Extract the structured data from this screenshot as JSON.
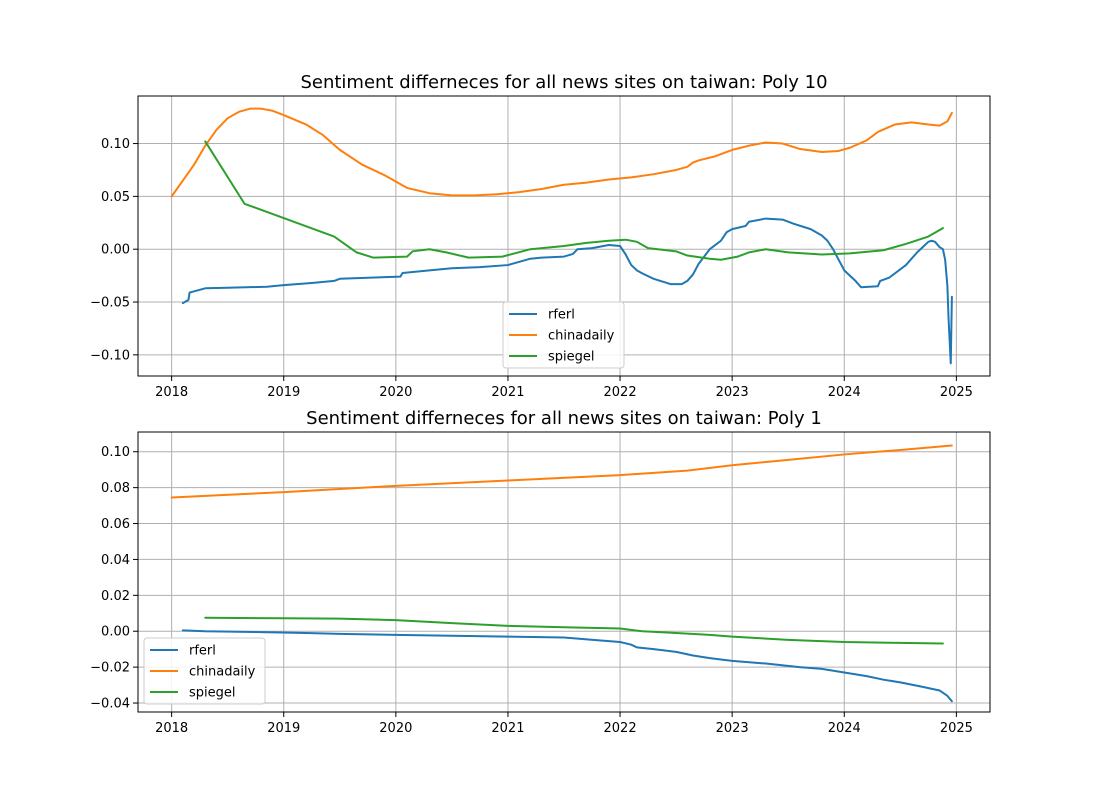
{
  "chart_data": [
    {
      "type": "line",
      "title": "Sentiment differneces for all news sites on taiwan: Poly 10",
      "xlabel": "",
      "ylabel": "",
      "xlim": [
        2017.7,
        2025.3
      ],
      "ylim": [
        -0.12,
        0.145
      ],
      "xticks": [
        2018,
        2019,
        2020,
        2021,
        2022,
        2023,
        2024,
        2025
      ],
      "xtick_labels": [
        "2018",
        "2019",
        "2020",
        "2021",
        "2022",
        "2023",
        "2024",
        "2025"
      ],
      "yticks": [
        -0.1,
        -0.05,
        0.0,
        0.05,
        0.1
      ],
      "ytick_labels": [
        "−0.10",
        "−0.05",
        "0.00",
        "0.05",
        "0.10"
      ],
      "grid": true,
      "legend_position": "lower-center",
      "series": [
        {
          "name": "rferl",
          "color": "#1f77b4",
          "x": [
            2018.1,
            2018.15,
            2018.16,
            2018.3,
            2018.5,
            2018.85,
            2019.0,
            2019.25,
            2019.45,
            2019.5,
            2019.75,
            2020.04,
            2020.06,
            2020.3,
            2020.5,
            2020.75,
            2021.0,
            2021.05,
            2021.2,
            2021.3,
            2021.5,
            2021.58,
            2021.62,
            2021.75,
            2021.9,
            2022.0,
            2022.05,
            2022.1,
            2022.15,
            2022.2,
            2022.3,
            2022.45,
            2022.55,
            2022.6,
            2022.65,
            2022.7,
            2022.8,
            2022.9,
            2022.95,
            2023.0,
            2023.12,
            2023.15,
            2023.3,
            2023.45,
            2023.55,
            2023.7,
            2023.8,
            2023.85,
            2023.9,
            2024.0,
            2024.1,
            2024.15,
            2024.3,
            2024.32,
            2024.4,
            2024.55,
            2024.6,
            2024.65,
            2024.7,
            2024.75,
            2024.78,
            2024.81,
            2024.85,
            2024.88,
            2024.9,
            2024.92,
            2024.93,
            2024.95,
            2024.96
          ],
          "values": [
            -0.051,
            -0.048,
            -0.041,
            -0.037,
            -0.0365,
            -0.0355,
            -0.034,
            -0.032,
            -0.03,
            -0.028,
            -0.027,
            -0.026,
            -0.0225,
            -0.02,
            -0.018,
            -0.017,
            -0.015,
            -0.0135,
            -0.009,
            -0.008,
            -0.007,
            -0.0045,
            0.0,
            0.001,
            0.004,
            0.003,
            -0.005,
            -0.015,
            -0.02,
            -0.023,
            -0.028,
            -0.033,
            -0.033,
            -0.03,
            -0.024,
            -0.014,
            0.0,
            0.008,
            0.016,
            0.019,
            0.022,
            0.026,
            0.029,
            0.028,
            0.024,
            0.019,
            0.013,
            0.008,
            0.0,
            -0.02,
            -0.03,
            -0.036,
            -0.035,
            -0.03,
            -0.027,
            -0.015,
            -0.009,
            -0.003,
            0.002,
            0.007,
            0.008,
            0.007,
            0.002,
            0.0,
            -0.01,
            -0.035,
            -0.065,
            -0.108,
            -0.045
          ]
        },
        {
          "name": "chinadaily",
          "color": "#ff7f0e",
          "x": [
            2018.0,
            2018.1,
            2018.2,
            2018.3,
            2018.4,
            2018.5,
            2018.6,
            2018.7,
            2018.8,
            2018.9,
            2019.0,
            2019.2,
            2019.35,
            2019.5,
            2019.7,
            2019.9,
            2020.1,
            2020.3,
            2020.5,
            2020.7,
            2020.9,
            2021.1,
            2021.3,
            2021.5,
            2021.7,
            2021.9,
            2022.1,
            2022.3,
            2022.5,
            2022.6,
            2022.65,
            2022.7,
            2022.85,
            2023.0,
            2023.15,
            2023.3,
            2023.45,
            2023.6,
            2023.8,
            2023.95,
            2024.05,
            2024.2,
            2024.3,
            2024.45,
            2024.6,
            2024.75,
            2024.85,
            2024.92,
            2024.96
          ],
          "values": [
            0.05,
            0.065,
            0.08,
            0.098,
            0.113,
            0.124,
            0.13,
            0.133,
            0.133,
            0.131,
            0.127,
            0.118,
            0.108,
            0.094,
            0.08,
            0.07,
            0.058,
            0.053,
            0.051,
            0.051,
            0.052,
            0.054,
            0.057,
            0.061,
            0.063,
            0.066,
            0.068,
            0.071,
            0.075,
            0.078,
            0.082,
            0.084,
            0.088,
            0.094,
            0.098,
            0.101,
            0.1,
            0.095,
            0.092,
            0.093,
            0.096,
            0.103,
            0.111,
            0.118,
            0.12,
            0.118,
            0.117,
            0.121,
            0.129
          ]
        },
        {
          "name": "spiegel",
          "color": "#2ca02c",
          "x": [
            2018.3,
            2018.65,
            2019.45,
            2019.65,
            2019.8,
            2020.1,
            2020.15,
            2020.3,
            2020.45,
            2020.65,
            2020.95,
            2021.2,
            2021.5,
            2021.7,
            2021.9,
            2022.05,
            2022.15,
            2022.25,
            2022.5,
            2022.6,
            2022.8,
            2022.9,
            2023.05,
            2023.15,
            2023.3,
            2023.5,
            2023.8,
            2024.05,
            2024.35,
            2024.55,
            2024.75,
            2024.88
          ],
          "values": [
            0.102,
            0.043,
            0.012,
            -0.003,
            -0.008,
            -0.007,
            -0.002,
            0.0,
            -0.003,
            -0.008,
            -0.007,
            0.0,
            0.003,
            0.006,
            0.008,
            0.009,
            0.007,
            0.001,
            -0.002,
            -0.006,
            -0.009,
            -0.01,
            -0.007,
            -0.003,
            0.0,
            -0.003,
            -0.005,
            -0.004,
            -0.001,
            0.005,
            0.012,
            0.02
          ]
        }
      ]
    },
    {
      "type": "line",
      "title": "Sentiment differneces for all news sites on taiwan: Poly 1",
      "xlabel": "",
      "ylabel": "",
      "xlim": [
        2017.7,
        2025.3
      ],
      "ylim": [
        -0.045,
        0.111
      ],
      "xticks": [
        2018,
        2019,
        2020,
        2021,
        2022,
        2023,
        2024,
        2025
      ],
      "xtick_labels": [
        "2018",
        "2019",
        "2020",
        "2021",
        "2022",
        "2023",
        "2024",
        "2025"
      ],
      "yticks": [
        -0.04,
        -0.02,
        0.0,
        0.02,
        0.04,
        0.06,
        0.08,
        0.1
      ],
      "ytick_labels": [
        "−0.04",
        "−0.02",
        "0.00",
        "0.02",
        "0.04",
        "0.06",
        "0.08",
        "0.10"
      ],
      "grid": true,
      "legend_position": "lower-left",
      "series": [
        {
          "name": "rferl",
          "color": "#1f77b4",
          "x": [
            2018.1,
            2018.3,
            2018.8,
            2019.2,
            2019.5,
            2020.0,
            2020.5,
            2021.0,
            2021.5,
            2021.8,
            2022.0,
            2022.1,
            2022.15,
            2022.3,
            2022.5,
            2022.65,
            2022.8,
            2023.0,
            2023.3,
            2023.6,
            2023.8,
            2024.0,
            2024.2,
            2024.35,
            2024.5,
            2024.7,
            2024.85,
            2024.92,
            2024.96
          ],
          "values": [
            0.0005,
            0.0,
            -0.0005,
            -0.001,
            -0.0015,
            -0.002,
            -0.0025,
            -0.003,
            -0.0035,
            -0.005,
            -0.006,
            -0.0075,
            -0.009,
            -0.01,
            -0.0115,
            -0.0135,
            -0.015,
            -0.0165,
            -0.018,
            -0.02,
            -0.021,
            -0.023,
            -0.025,
            -0.027,
            -0.0285,
            -0.031,
            -0.033,
            -0.036,
            -0.039
          ]
        },
        {
          "name": "chinadaily",
          "color": "#ff7f0e",
          "x": [
            2018.0,
            2019.0,
            2020.0,
            2021.0,
            2022.0,
            2022.6,
            2023.0,
            2023.5,
            2024.0,
            2024.5,
            2024.96
          ],
          "values": [
            0.0745,
            0.0775,
            0.081,
            0.084,
            0.087,
            0.0895,
            0.0925,
            0.0955,
            0.0985,
            0.101,
            0.1035
          ]
        },
        {
          "name": "spiegel",
          "color": "#2ca02c",
          "x": [
            2018.3,
            2019.0,
            2019.5,
            2020.0,
            2020.5,
            2021.0,
            2021.5,
            2022.0,
            2022.2,
            2022.5,
            2022.8,
            2023.0,
            2023.5,
            2024.0,
            2024.5,
            2024.88
          ],
          "values": [
            0.0075,
            0.0072,
            0.007,
            0.0062,
            0.0045,
            0.003,
            0.0022,
            0.0015,
            0.0,
            -0.001,
            -0.002,
            -0.003,
            -0.0048,
            -0.006,
            -0.0065,
            -0.0068
          ]
        }
      ]
    }
  ]
}
